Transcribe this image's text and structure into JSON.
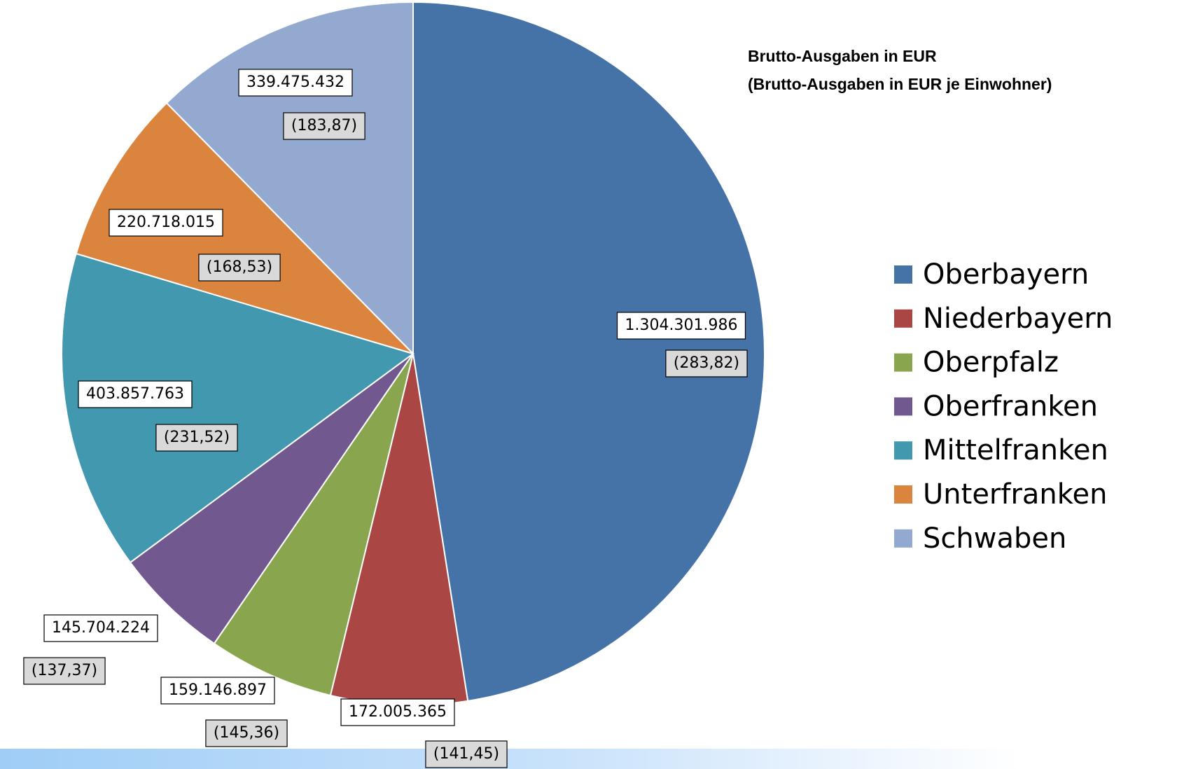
{
  "chart_data": {
    "type": "pie",
    "title": "Brutto-Ausgaben in EUR",
    "subtitle": "(Brutto-Ausgaben in EUR je Einwohner)",
    "categories": [
      "Oberbayern",
      "Niederbayern",
      "Oberpfalz",
      "Oberfranken",
      "Mittelfranken",
      "Unterfranken",
      "Schwaben"
    ],
    "values": [
      1304301986,
      172005365,
      159146897,
      145704224,
      403857763,
      220718015,
      339475432
    ],
    "value_labels": [
      "1.304.301.986",
      "172.005.365",
      "159.146.897",
      "145.704.224",
      "403.857.763",
      "220.718.015",
      "339.475.432"
    ],
    "per_capita": [
      283.82,
      141.45,
      145.36,
      137.37,
      231.52,
      168.53,
      183.87
    ],
    "per_capita_labels": [
      "(283,82)",
      "(141,45)",
      "(145,36)",
      "(137,37)",
      "(231,52)",
      "(168,53)",
      "(183,87)"
    ],
    "colors": [
      "#4572a7",
      "#aa4643",
      "#89a54e",
      "#71588f",
      "#4198af",
      "#db843d",
      "#93a9cf"
    ],
    "legend": "right"
  }
}
